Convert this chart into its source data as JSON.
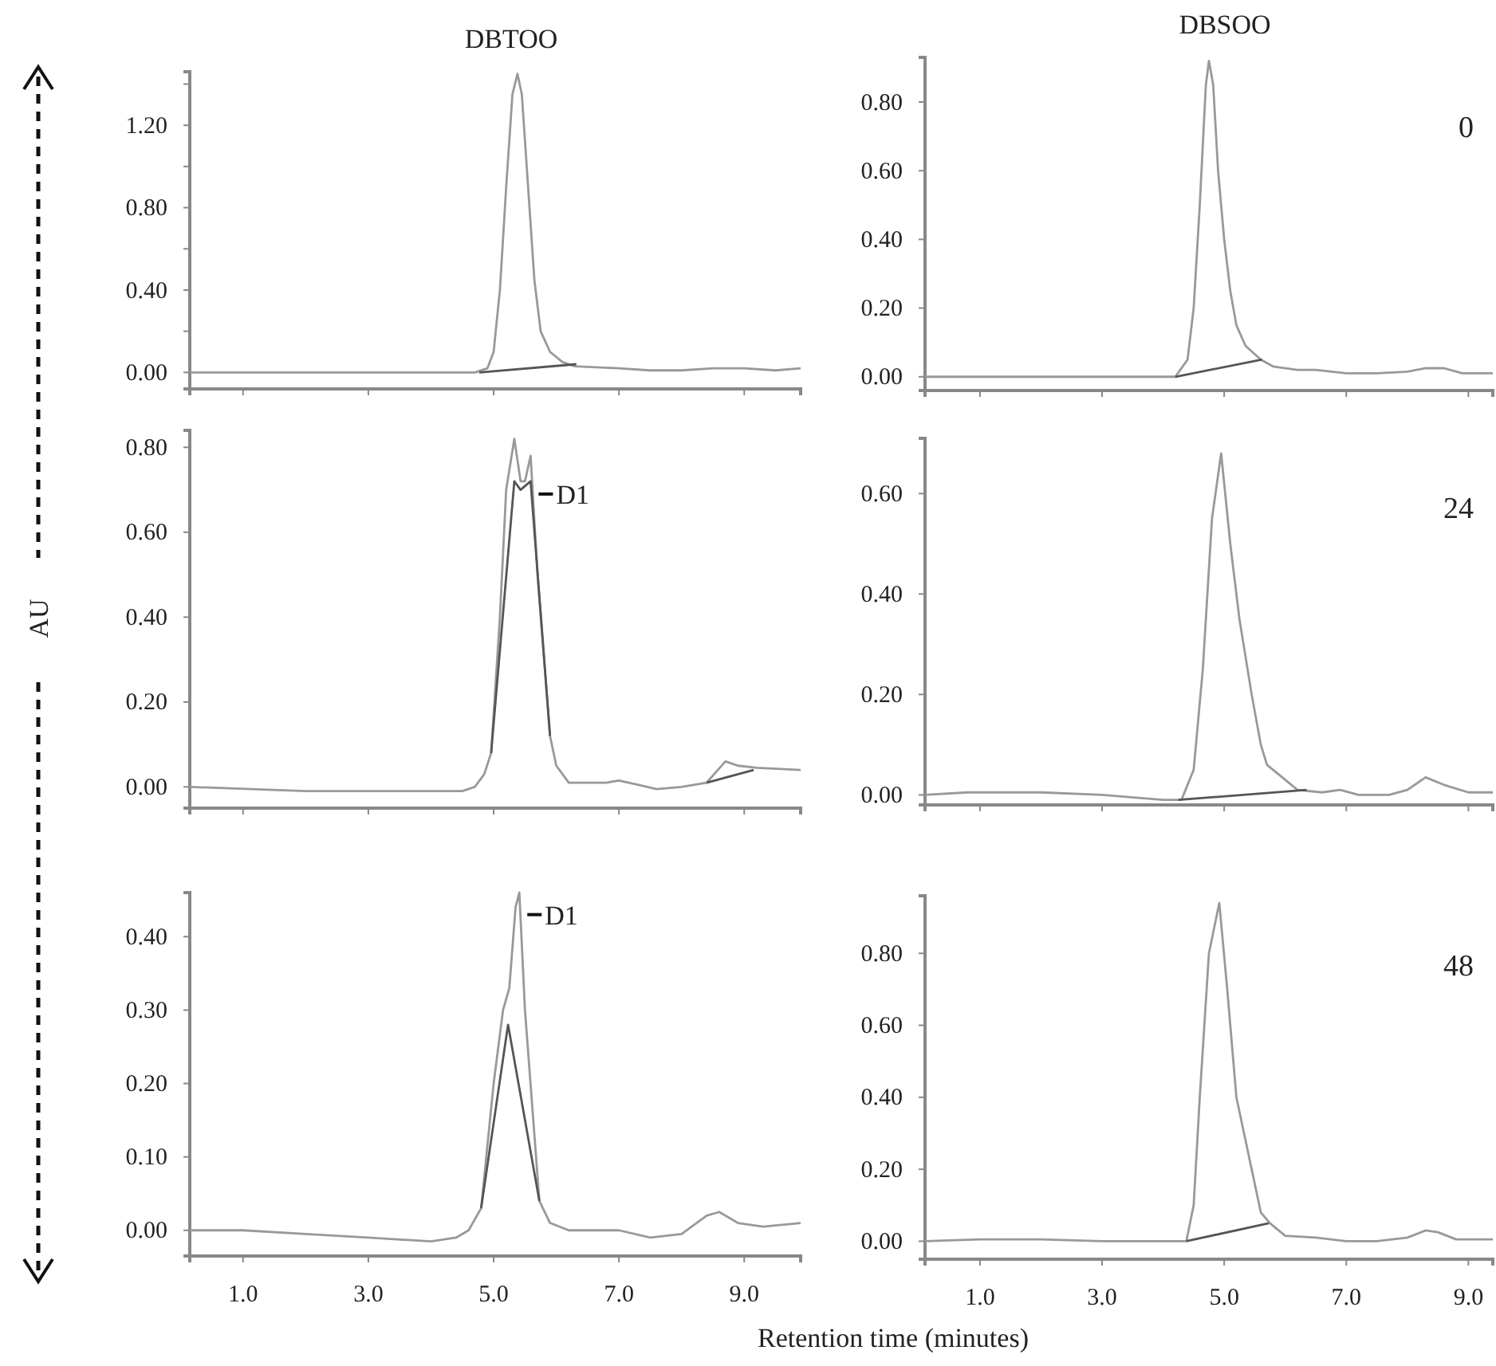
{
  "chart_data": [
    {
      "type": "line",
      "title": "DBTOO",
      "xlim": [
        0.15,
        9.9
      ],
      "xticks": [
        {
          "value": 1,
          "label": null
        },
        {
          "value": 3,
          "label": null
        },
        {
          "value": 5,
          "label": null
        },
        {
          "value": 7,
          "label": null
        },
        {
          "value": 9,
          "label": null
        }
      ],
      "ylim": [
        -0.08,
        1.46
      ],
      "yticks": [
        {
          "value": 0,
          "label": "0.00"
        },
        {
          "value": 0.2,
          "label": null
        },
        {
          "value": 0.4,
          "label": "0.40"
        },
        {
          "value": 0.6,
          "label": null
        },
        {
          "value": 0.8,
          "label": "0.80"
        },
        {
          "value": 1.0,
          "label": null
        },
        {
          "value": 1.2,
          "label": "1.20"
        },
        {
          "value": 1.4,
          "label": null
        }
      ],
      "tick_labels": "y",
      "series": [
        {
          "color": "#999999",
          "x": [
            0.15,
            2,
            4,
            4.7,
            4.9,
            5.0,
            5.1,
            5.2,
            5.3,
            5.38,
            5.45,
            5.55,
            5.65,
            5.75,
            5.9,
            6.1,
            6.3,
            7.0,
            7.5,
            8.0,
            8.5,
            9.0,
            9.5,
            9.9
          ],
          "values": [
            0,
            0,
            0,
            0,
            0.02,
            0.1,
            0.4,
            0.9,
            1.35,
            1.45,
            1.35,
            0.9,
            0.45,
            0.2,
            0.1,
            0.05,
            0.03,
            0.02,
            0.01,
            0.01,
            0.02,
            0.02,
            0.01,
            0.02
          ]
        },
        {
          "color": "#555555",
          "x": [
            4.77,
            6.32
          ],
          "values": [
            0,
            0.04
          ]
        }
      ]
    },
    {
      "type": "line",
      "title": "DBSOO",
      "annotations": [
        "0"
      ],
      "xlim": [
        0.1,
        9.4
      ],
      "xticks": [
        {
          "value": 1,
          "label": null
        },
        {
          "value": 3,
          "label": null
        },
        {
          "value": 5,
          "label": null
        },
        {
          "value": 7,
          "label": null
        },
        {
          "value": 9,
          "label": null
        }
      ],
      "ylim": [
        -0.04,
        0.93
      ],
      "yticks": [
        {
          "value": 0,
          "label": "0.00"
        },
        {
          "value": 0.2,
          "label": "0.20"
        },
        {
          "value": 0.4,
          "label": "0.40"
        },
        {
          "value": 0.6,
          "label": "0.60"
        },
        {
          "value": 0.8,
          "label": "0.80"
        }
      ],
      "tick_labels": "y",
      "series": [
        {
          "color": "#999999",
          "x": [
            0.1,
            3,
            4.2,
            4.4,
            4.5,
            4.6,
            4.7,
            4.75,
            4.82,
            4.9,
            5.0,
            5.1,
            5.2,
            5.35,
            5.6,
            5.8,
            6.2,
            6.5,
            7.0,
            7.5,
            8.0,
            8.3,
            8.6,
            8.9,
            9.4
          ],
          "values": [
            0,
            0,
            0,
            0.05,
            0.2,
            0.5,
            0.85,
            0.92,
            0.85,
            0.6,
            0.4,
            0.25,
            0.15,
            0.09,
            0.05,
            0.03,
            0.02,
            0.02,
            0.01,
            0.01,
            0.015,
            0.025,
            0.025,
            0.01,
            0.01
          ]
        },
        {
          "color": "#555555",
          "x": [
            4.2,
            5.62
          ],
          "values": [
            0,
            0.05
          ]
        }
      ]
    },
    {
      "type": "line",
      "ylabel": "AU",
      "annotations": [
        {
          "text": "D1",
          "x": 5.59,
          "y": 0.69
        }
      ],
      "xlim": [
        0.15,
        9.9
      ],
      "xticks": [
        {
          "value": 1,
          "label": null
        },
        {
          "value": 3,
          "label": null
        },
        {
          "value": 5,
          "label": null
        },
        {
          "value": 7,
          "label": null
        },
        {
          "value": 9,
          "label": null
        }
      ],
      "ylim": [
        -0.05,
        0.84
      ],
      "yticks": [
        {
          "value": 0,
          "label": "0.00"
        },
        {
          "value": 0.2,
          "label": "0.20"
        },
        {
          "value": 0.4,
          "label": "0.40"
        },
        {
          "value": 0.6,
          "label": "0.60"
        },
        {
          "value": 0.8,
          "label": "0.80"
        }
      ],
      "tick_labels": "y",
      "series": [
        {
          "color": "#999999",
          "x": [
            0.15,
            2,
            4,
            4.5,
            4.7,
            4.85,
            4.96,
            5.1,
            5.2,
            5.33,
            5.43,
            5.5,
            5.59,
            5.7,
            5.9,
            6.0,
            6.2,
            6.8,
            7.0,
            7.3,
            7.6,
            8.0,
            8.4,
            8.7,
            8.9,
            9.2,
            9.9
          ],
          "values": [
            0,
            -0.01,
            -0.01,
            -0.01,
            0,
            0.03,
            0.08,
            0.4,
            0.7,
            0.82,
            0.72,
            0.72,
            0.78,
            0.5,
            0.12,
            0.05,
            0.01,
            0.01,
            0.015,
            0.005,
            -0.005,
            0,
            0.01,
            0.06,
            0.05,
            0.045,
            0.04
          ]
        },
        {
          "color": "#555555",
          "x": [
            4.96,
            5.33,
            5.43,
            5.59,
            5.9
          ],
          "values": [
            0.08,
            0.72,
            0.7,
            0.72,
            0.12
          ]
        },
        {
          "color": "#555555",
          "x": [
            8.4,
            9.15
          ],
          "values": [
            0.01,
            0.04
          ]
        }
      ]
    },
    {
      "type": "line",
      "annotations": [
        "24"
      ],
      "xlim": [
        0.1,
        9.4
      ],
      "xticks": [
        {
          "value": 1,
          "label": null
        },
        {
          "value": 3,
          "label": null
        },
        {
          "value": 5,
          "label": null
        },
        {
          "value": 7,
          "label": null
        },
        {
          "value": 9,
          "label": null
        }
      ],
      "ylim": [
        -0.02,
        0.71
      ],
      "yticks": [
        {
          "value": 0,
          "label": "0.00"
        },
        {
          "value": 0.2,
          "label": "0.20"
        },
        {
          "value": 0.4,
          "label": "0.40"
        },
        {
          "value": 0.6,
          "label": "0.60"
        }
      ],
      "tick_labels": "y",
      "series": [
        {
          "color": "#999999",
          "x": [
            0.1,
            0.8,
            2,
            3,
            4.0,
            4.3,
            4.5,
            4.65,
            4.8,
            4.95,
            5.1,
            5.25,
            5.45,
            5.6,
            5.7,
            5.9,
            6.2,
            6.6,
            6.9,
            7.2,
            7.7,
            8.0,
            8.3,
            8.6,
            9.0,
            9.4
          ],
          "values": [
            0,
            0.005,
            0.005,
            0,
            -0.01,
            -0.01,
            0.05,
            0.25,
            0.55,
            0.68,
            0.5,
            0.35,
            0.2,
            0.1,
            0.06,
            0.04,
            0.01,
            0.005,
            0.01,
            0,
            0,
            0.01,
            0.035,
            0.02,
            0.005,
            0.005
          ]
        },
        {
          "color": "#555555",
          "x": [
            4.25,
            6.35
          ],
          "values": [
            -0.01,
            0.01
          ]
        }
      ]
    },
    {
      "type": "line",
      "xlabel": "Retention time (minutes)",
      "annotations": [
        {
          "text": "D1",
          "x": 5.41,
          "y": 0.43
        }
      ],
      "xlim": [
        0.15,
        9.9
      ],
      "xticks": [
        {
          "value": 1,
          "label": "1.0"
        },
        {
          "value": 3,
          "label": "3.0"
        },
        {
          "value": 5,
          "label": "5.0"
        },
        {
          "value": 7,
          "label": "7.0"
        },
        {
          "value": 9,
          "label": "9.0"
        }
      ],
      "ylim": [
        -0.035,
        0.46
      ],
      "yticks": [
        {
          "value": 0,
          "label": "0.00"
        },
        {
          "value": 0.1,
          "label": "0.10"
        },
        {
          "value": 0.2,
          "label": "0.20"
        },
        {
          "value": 0.3,
          "label": "0.30"
        },
        {
          "value": 0.4,
          "label": "0.40"
        }
      ],
      "series": [
        {
          "color": "#999999",
          "x": [
            0.15,
            1.0,
            2.0,
            3.0,
            4.0,
            4.4,
            4.6,
            4.8,
            5.0,
            5.15,
            5.25,
            5.35,
            5.41,
            5.5,
            5.73,
            5.9,
            6.2,
            7.0,
            7.5,
            8.0,
            8.4,
            8.6,
            8.9,
            9.3,
            9.9
          ],
          "values": [
            0,
            0,
            -0.005,
            -0.01,
            -0.015,
            -0.01,
            0,
            0.03,
            0.2,
            0.3,
            0.33,
            0.44,
            0.46,
            0.3,
            0.04,
            0.01,
            0,
            0,
            -0.01,
            -0.005,
            0.02,
            0.025,
            0.01,
            0.005,
            0.01
          ]
        },
        {
          "color": "#555555",
          "x": [
            4.8,
            5.23,
            5.73
          ],
          "values": [
            0.03,
            0.28,
            0.04
          ]
        }
      ]
    },
    {
      "type": "line",
      "annotations": [
        "48"
      ],
      "xlim": [
        0.1,
        9.4
      ],
      "xticks": [
        {
          "value": 1,
          "label": "1.0"
        },
        {
          "value": 3,
          "label": "3.0"
        },
        {
          "value": 5,
          "label": "5.0"
        },
        {
          "value": 7,
          "label": "7.0"
        },
        {
          "value": 9,
          "label": "9.0"
        }
      ],
      "ylim": [
        -0.05,
        0.96
      ],
      "yticks": [
        {
          "value": 0,
          "label": "0.00"
        },
        {
          "value": 0.2,
          "label": "0.20"
        },
        {
          "value": 0.4,
          "label": "0.40"
        },
        {
          "value": 0.6,
          "label": "0.60"
        },
        {
          "value": 0.8,
          "label": "0.80"
        }
      ],
      "series": [
        {
          "color": "#999999",
          "x": [
            0.1,
            1,
            2,
            3,
            4,
            4.38,
            4.5,
            4.6,
            4.75,
            4.92,
            5.05,
            5.2,
            5.35,
            5.45,
            5.6,
            5.75,
            6.0,
            6.5,
            7.0,
            7.5,
            8.0,
            8.3,
            8.5,
            8.8,
            9.4
          ],
          "values": [
            0,
            0.005,
            0.005,
            0,
            0,
            0,
            0.1,
            0.4,
            0.8,
            0.94,
            0.7,
            0.4,
            0.28,
            0.2,
            0.08,
            0.05,
            0.015,
            0.01,
            0,
            0,
            0.01,
            0.03,
            0.025,
            0.005,
            0.005
          ]
        },
        {
          "color": "#555555",
          "x": [
            4.38,
            5.73
          ],
          "values": [
            0,
            0.05
          ]
        }
      ]
    }
  ]
}
